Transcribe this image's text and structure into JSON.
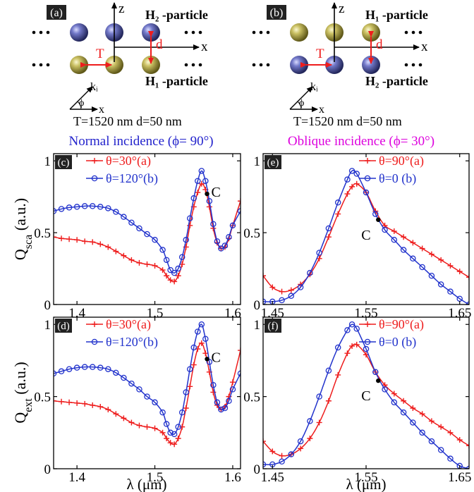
{
  "colors": {
    "red": "#ee1c1c",
    "blue": "#2233cc",
    "magenta": "#e000e0",
    "gold": "#b0a640",
    "purple": "#4a4f9c",
    "black": "#000000"
  },
  "schematics": [
    {
      "panel": "(a)",
      "top_label": "H₂ -particle",
      "bottom_label": "H₁ -particle",
      "top_color": "purple",
      "bottom_color": "gold",
      "axis_z": "z",
      "axis_x": "x",
      "T_label": "T",
      "d_label": "d",
      "k_label": "kᵢ",
      "phi_label": "ϕ",
      "kx_label": "x",
      "params": "T=1520 nm d=50 nm"
    },
    {
      "panel": "(b)",
      "top_label": "H₁ -particle",
      "bottom_label": "H₂ -particle",
      "top_color": "gold",
      "bottom_color": "purple",
      "axis_z": "z",
      "axis_x": "x",
      "T_label": "T",
      "d_label": "d",
      "k_label": "kᵢ",
      "phi_label": "ϕ",
      "kx_label": "x",
      "params": "T=1520 nm d=50 nm"
    }
  ],
  "headings": {
    "left": "Normal incidence (ϕ= 90°)",
    "left_color": "#2222cc",
    "right": "Oblique incidence (ϕ= 30°)",
    "right_color": "#dd00dd"
  },
  "ylabel_sca": "Q",
  "ylabel_sca_sub": "sca",
  "ylabel_sca_unit": " (a.u.)",
  "ylabel_ext": "Q",
  "ylabel_ext_sub": "ext",
  "ylabel_ext_unit": " (a.u.)",
  "xlabel": "λ (μm)",
  "point_label": "C",
  "chart_data": [
    {
      "panel": "(c)",
      "type": "line",
      "xlim": [
        1.37,
        1.61
      ],
      "ylim": [
        0,
        1.05
      ],
      "xticks": [
        1.4,
        1.5,
        1.6
      ],
      "xtick_labels": [
        "1.4",
        "1.5",
        "1.6"
      ],
      "yticks": [
        0,
        0.5,
        1
      ],
      "ytick_labels": [
        "0",
        "0.5",
        "1"
      ],
      "legend": [
        {
          "label": "θ=30°(a)",
          "series": 0
        },
        {
          "label": "θ=120°(b)",
          "series": 1
        }
      ],
      "legend_position": "top-left",
      "point_C": {
        "x": 1.567,
        "y": 0.77
      },
      "series": [
        {
          "name": "θ=30°(a)",
          "color": "red",
          "marker": "plus",
          "x": [
            1.37,
            1.38,
            1.39,
            1.4,
            1.41,
            1.42,
            1.43,
            1.44,
            1.45,
            1.46,
            1.47,
            1.48,
            1.49,
            1.5,
            1.51,
            1.515,
            1.52,
            1.525,
            1.53,
            1.535,
            1.54,
            1.545,
            1.55,
            1.555,
            1.56,
            1.565,
            1.57,
            1.575,
            1.58,
            1.585,
            1.59,
            1.595,
            1.6,
            1.61
          ],
          "y": [
            0.47,
            0.46,
            0.455,
            0.45,
            0.44,
            0.435,
            0.42,
            0.4,
            0.37,
            0.34,
            0.31,
            0.29,
            0.28,
            0.27,
            0.24,
            0.2,
            0.17,
            0.16,
            0.2,
            0.28,
            0.4,
            0.55,
            0.68,
            0.78,
            0.84,
            0.8,
            0.68,
            0.53,
            0.43,
            0.39,
            0.4,
            0.46,
            0.55,
            0.72
          ]
        },
        {
          "name": "θ=120°(b)",
          "color": "blue",
          "marker": "circle",
          "x": [
            1.37,
            1.38,
            1.39,
            1.4,
            1.41,
            1.42,
            1.43,
            1.44,
            1.45,
            1.46,
            1.47,
            1.48,
            1.49,
            1.5,
            1.51,
            1.515,
            1.52,
            1.525,
            1.53,
            1.535,
            1.54,
            1.545,
            1.55,
            1.555,
            1.56,
            1.565,
            1.57,
            1.575,
            1.58,
            1.585,
            1.59,
            1.595,
            1.6,
            1.61
          ],
          "y": [
            0.65,
            0.665,
            0.675,
            0.68,
            0.685,
            0.685,
            0.68,
            0.67,
            0.645,
            0.61,
            0.57,
            0.53,
            0.49,
            0.45,
            0.38,
            0.31,
            0.24,
            0.22,
            0.25,
            0.33,
            0.45,
            0.6,
            0.74,
            0.86,
            0.93,
            0.86,
            0.72,
            0.56,
            0.44,
            0.39,
            0.41,
            0.47,
            0.55,
            0.65
          ]
        }
      ]
    },
    {
      "panel": "(d)",
      "type": "line",
      "xlim": [
        1.37,
        1.61
      ],
      "ylim": [
        0,
        1.05
      ],
      "xticks": [
        1.4,
        1.5,
        1.6
      ],
      "xtick_labels": [
        "1.4",
        "1.5",
        "1.6"
      ],
      "yticks": [
        0,
        0.5,
        1
      ],
      "ytick_labels": [
        "0",
        "0.5",
        "1"
      ],
      "legend": [
        {
          "label": "θ=30°(a)",
          "series": 0
        },
        {
          "label": "θ=120°(b)",
          "series": 1
        }
      ],
      "legend_position": "top-left",
      "point_C": {
        "x": 1.567,
        "y": 0.76
      },
      "series": [
        {
          "name": "θ=30°(a)",
          "color": "red",
          "marker": "plus",
          "x": [
            1.37,
            1.38,
            1.39,
            1.4,
            1.41,
            1.42,
            1.43,
            1.44,
            1.45,
            1.46,
            1.47,
            1.48,
            1.49,
            1.5,
            1.51,
            1.515,
            1.52,
            1.525,
            1.53,
            1.535,
            1.54,
            1.545,
            1.55,
            1.555,
            1.56,
            1.565,
            1.57,
            1.575,
            1.58,
            1.585,
            1.59,
            1.595,
            1.6,
            1.61
          ],
          "y": [
            0.47,
            0.465,
            0.46,
            0.455,
            0.45,
            0.44,
            0.43,
            0.41,
            0.38,
            0.35,
            0.32,
            0.3,
            0.29,
            0.28,
            0.25,
            0.21,
            0.18,
            0.17,
            0.21,
            0.29,
            0.42,
            0.57,
            0.72,
            0.83,
            0.87,
            0.8,
            0.67,
            0.53,
            0.44,
            0.41,
            0.43,
            0.5,
            0.6,
            0.82
          ]
        },
        {
          "name": "θ=120°(b)",
          "color": "blue",
          "marker": "circle",
          "x": [
            1.37,
            1.38,
            1.39,
            1.4,
            1.41,
            1.42,
            1.43,
            1.44,
            1.45,
            1.46,
            1.47,
            1.48,
            1.49,
            1.5,
            1.51,
            1.515,
            1.52,
            1.525,
            1.53,
            1.535,
            1.54,
            1.545,
            1.55,
            1.555,
            1.56,
            1.565,
            1.57,
            1.575,
            1.58,
            1.585,
            1.59,
            1.595,
            1.6,
            1.61
          ],
          "y": [
            0.66,
            0.675,
            0.69,
            0.7,
            0.705,
            0.705,
            0.7,
            0.69,
            0.665,
            0.63,
            0.59,
            0.55,
            0.5,
            0.46,
            0.39,
            0.31,
            0.25,
            0.24,
            0.29,
            0.39,
            0.53,
            0.69,
            0.84,
            0.95,
            1.0,
            0.9,
            0.74,
            0.58,
            0.46,
            0.41,
            0.42,
            0.47,
            0.55,
            0.66
          ]
        }
      ]
    },
    {
      "panel": "(e)",
      "type": "line",
      "xlim": [
        1.44,
        1.66
      ],
      "ylim": [
        0,
        1.05
      ],
      "xticks": [
        1.45,
        1.55,
        1.65
      ],
      "xtick_labels": [
        "1.45",
        "1.55",
        "1.65"
      ],
      "yticks": [
        0,
        0.5,
        1
      ],
      "ytick_labels": [
        "0",
        "0.5",
        "1"
      ],
      "legend": [
        {
          "label": "θ=90°(a)",
          "series": 0
        },
        {
          "label": "θ=0 (b)",
          "series": 1
        }
      ],
      "legend_position": "top-right",
      "point_C": {
        "x": 1.563,
        "y": 0.59
      },
      "series": [
        {
          "name": "θ=90°(a)",
          "color": "red",
          "marker": "plus",
          "x": [
            1.44,
            1.45,
            1.46,
            1.47,
            1.48,
            1.49,
            1.5,
            1.51,
            1.52,
            1.53,
            1.535,
            1.54,
            1.55,
            1.56,
            1.57,
            1.58,
            1.59,
            1.6,
            1.61,
            1.62,
            1.63,
            1.64,
            1.65,
            1.66
          ],
          "y": [
            0.2,
            0.12,
            0.09,
            0.1,
            0.14,
            0.21,
            0.32,
            0.47,
            0.63,
            0.77,
            0.82,
            0.84,
            0.78,
            0.65,
            0.55,
            0.51,
            0.47,
            0.43,
            0.39,
            0.35,
            0.31,
            0.27,
            0.23,
            0.19
          ]
        },
        {
          "name": "θ=0 (b)",
          "color": "blue",
          "marker": "circle",
          "x": [
            1.44,
            1.45,
            1.46,
            1.47,
            1.48,
            1.49,
            1.5,
            1.51,
            1.52,
            1.53,
            1.535,
            1.54,
            1.55,
            1.56,
            1.57,
            1.58,
            1.59,
            1.6,
            1.61,
            1.62,
            1.63,
            1.64,
            1.65,
            1.66
          ],
          "y": [
            0.02,
            0.02,
            0.03,
            0.06,
            0.12,
            0.22,
            0.36,
            0.53,
            0.71,
            0.87,
            0.93,
            0.91,
            0.78,
            0.63,
            0.52,
            0.45,
            0.38,
            0.32,
            0.26,
            0.2,
            0.14,
            0.09,
            0.04,
            0.0
          ]
        }
      ]
    },
    {
      "panel": "(f)",
      "type": "line",
      "xlim": [
        1.44,
        1.66
      ],
      "ylim": [
        0,
        1.05
      ],
      "xticks": [
        1.45,
        1.55,
        1.65
      ],
      "xtick_labels": [
        "1.45",
        "1.55",
        "1.65"
      ],
      "yticks": [
        0,
        0.5,
        1
      ],
      "ytick_labels": [
        "0",
        "0.5",
        "1"
      ],
      "legend": [
        {
          "label": "θ=90°(a)",
          "series": 0
        },
        {
          "label": "θ=0 (b)",
          "series": 1
        }
      ],
      "legend_position": "top-right",
      "point_C": {
        "x": 1.563,
        "y": 0.61
      },
      "series": [
        {
          "name": "θ=90°(a)",
          "color": "red",
          "marker": "plus",
          "x": [
            1.44,
            1.45,
            1.46,
            1.47,
            1.48,
            1.49,
            1.5,
            1.51,
            1.52,
            1.53,
            1.535,
            1.54,
            1.55,
            1.56,
            1.57,
            1.58,
            1.59,
            1.6,
            1.61,
            1.62,
            1.63,
            1.64,
            1.65,
            1.66
          ],
          "y": [
            0.19,
            0.12,
            0.09,
            0.1,
            0.14,
            0.21,
            0.32,
            0.47,
            0.65,
            0.8,
            0.85,
            0.86,
            0.79,
            0.67,
            0.58,
            0.52,
            0.47,
            0.42,
            0.38,
            0.33,
            0.29,
            0.25,
            0.2,
            0.16
          ]
        },
        {
          "name": "θ=0 (b)",
          "color": "blue",
          "marker": "circle",
          "x": [
            1.44,
            1.45,
            1.46,
            1.47,
            1.48,
            1.49,
            1.5,
            1.51,
            1.52,
            1.53,
            1.535,
            1.54,
            1.55,
            1.56,
            1.57,
            1.58,
            1.59,
            1.6,
            1.61,
            1.62,
            1.63,
            1.64,
            1.65,
            1.66
          ],
          "y": [
            0.03,
            0.03,
            0.05,
            0.1,
            0.19,
            0.33,
            0.5,
            0.68,
            0.84,
            0.96,
            1.0,
            0.97,
            0.83,
            0.67,
            0.55,
            0.46,
            0.39,
            0.32,
            0.25,
            0.19,
            0.13,
            0.07,
            0.02,
            0.0
          ]
        }
      ]
    }
  ]
}
